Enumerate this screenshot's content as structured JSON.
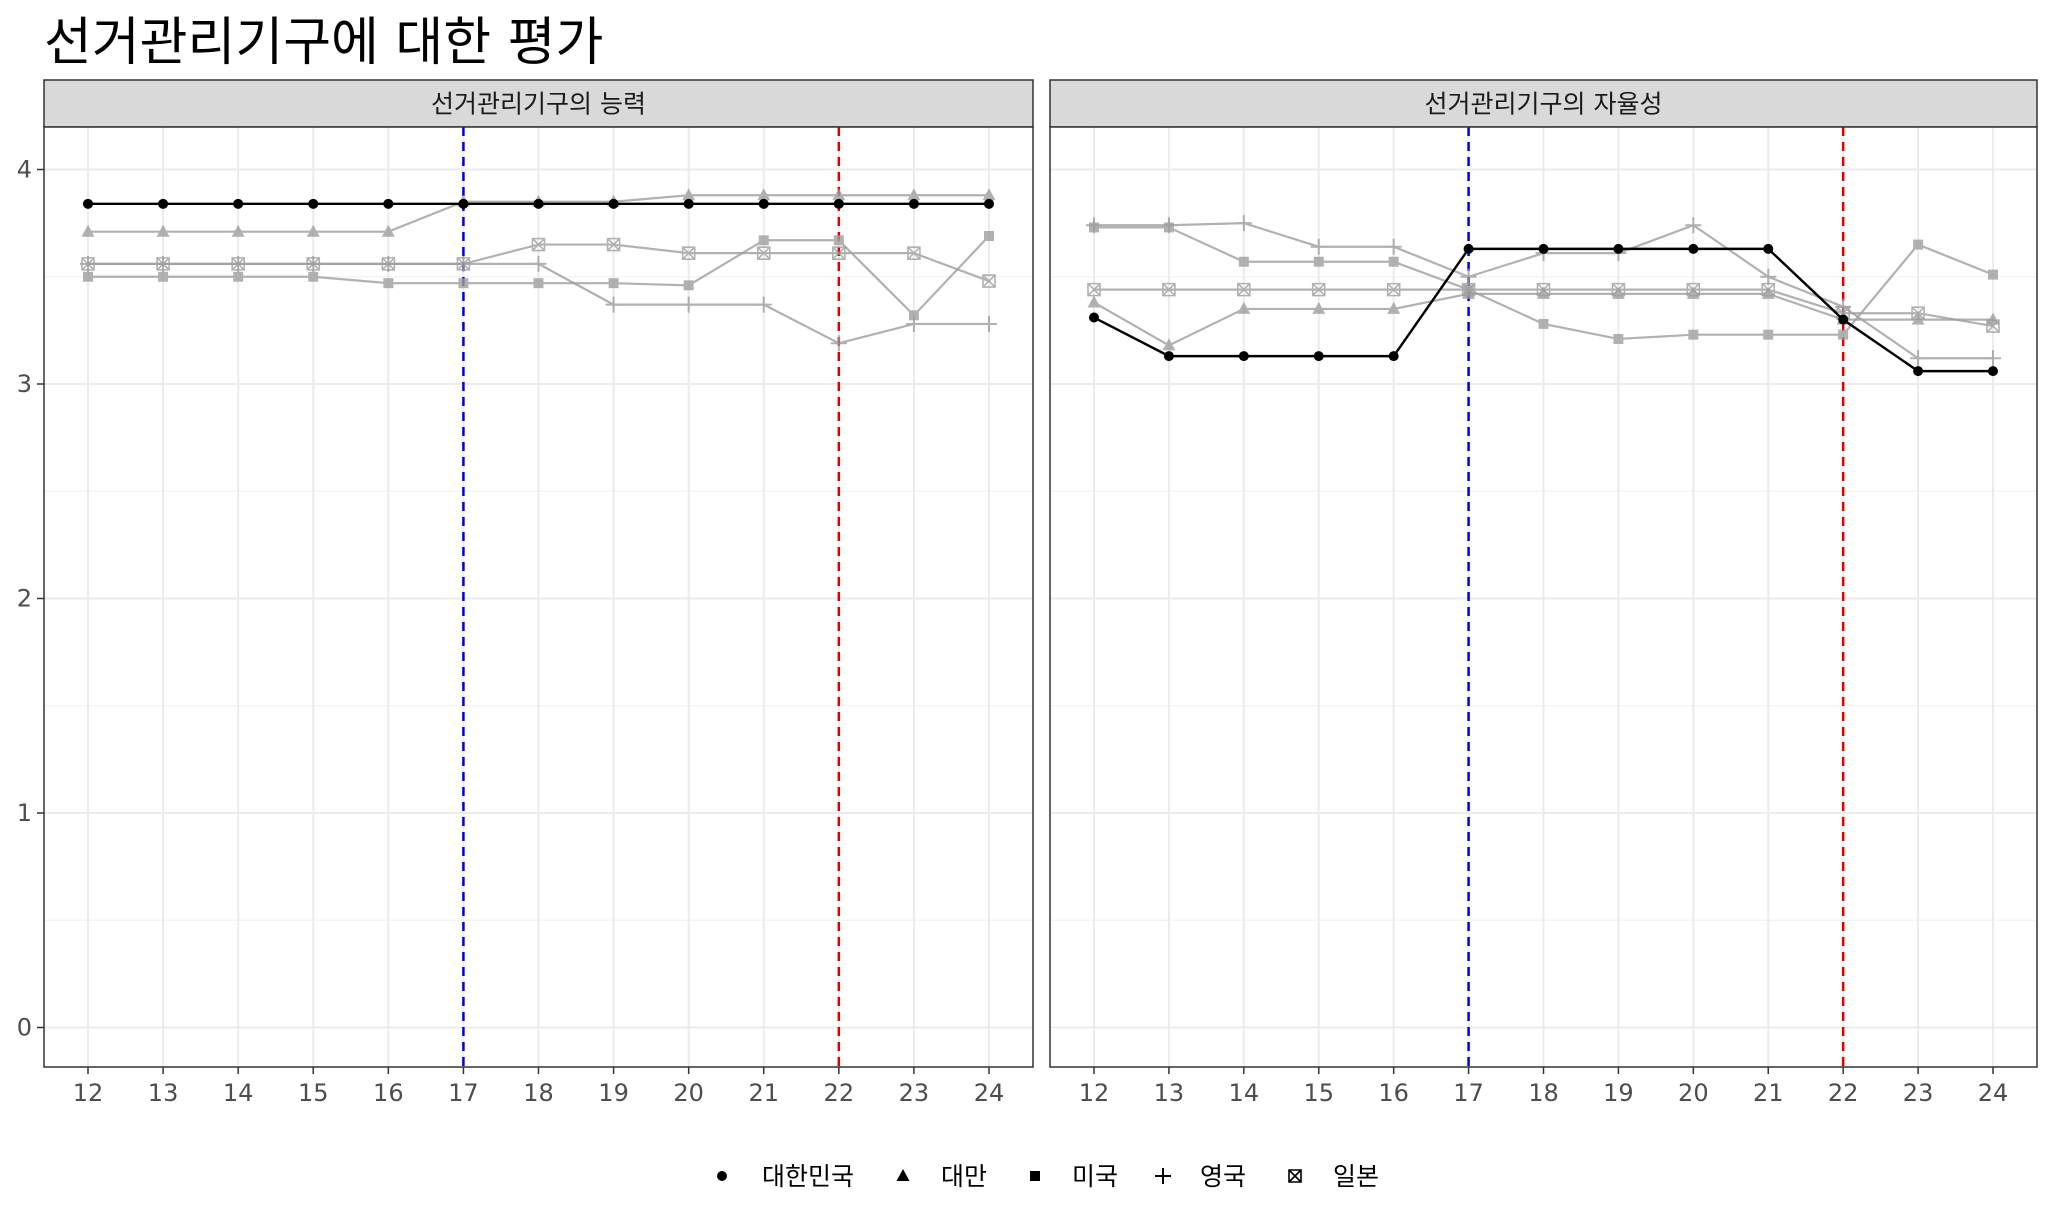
{
  "title": "선거관리기구에 대한 평가",
  "chart_data": {
    "type": "line",
    "x": [
      12,
      13,
      14,
      15,
      16,
      17,
      18,
      19,
      20,
      21,
      22,
      23,
      24
    ],
    "ylim": [
      0,
      4
    ],
    "y_ticks": [
      0,
      1,
      2,
      3,
      4
    ],
    "grid": true,
    "legend_position": "bottom",
    "reference_lines": [
      {
        "x": 17,
        "color": "#0000dd",
        "style": "dashed"
      },
      {
        "x": 22,
        "color": "#dd0000",
        "style": "dashed"
      }
    ],
    "panels": [
      {
        "strip_label": "선거관리기구의 능력",
        "series": [
          {
            "name": "대한민국",
            "marker": "circle",
            "highlight": true,
            "values": [
              3.84,
              3.84,
              3.84,
              3.84,
              3.84,
              3.84,
              3.84,
              3.84,
              3.84,
              3.84,
              3.84,
              3.84,
              3.84
            ]
          },
          {
            "name": "대만",
            "marker": "triangle",
            "highlight": false,
            "values": [
              3.71,
              3.71,
              3.71,
              3.71,
              3.71,
              3.85,
              3.85,
              3.85,
              3.88,
              3.88,
              3.88,
              3.88,
              3.88
            ]
          },
          {
            "name": "미국",
            "marker": "square",
            "highlight": false,
            "values": [
              3.5,
              3.5,
              3.5,
              3.5,
              3.47,
              3.47,
              3.47,
              3.47,
              3.46,
              3.67,
              3.67,
              3.32,
              3.69
            ]
          },
          {
            "name": "영국",
            "marker": "plus",
            "highlight": false,
            "values": [
              3.56,
              3.56,
              3.56,
              3.56,
              3.56,
              3.56,
              3.56,
              3.37,
              3.37,
              3.37,
              3.19,
              3.28,
              3.28
            ]
          },
          {
            "name": "일본",
            "marker": "boxcross",
            "highlight": false,
            "values": [
              3.56,
              3.56,
              3.56,
              3.56,
              3.56,
              3.56,
              3.65,
              3.65,
              3.61,
              3.61,
              3.61,
              3.61,
              3.48
            ]
          }
        ]
      },
      {
        "strip_label": "선거관리기구의 자율성",
        "series": [
          {
            "name": "대한민국",
            "marker": "circle",
            "highlight": true,
            "values": [
              3.31,
              3.13,
              3.13,
              3.13,
              3.13,
              3.63,
              3.63,
              3.63,
              3.63,
              3.63,
              3.3,
              3.06,
              3.06
            ]
          },
          {
            "name": "대만",
            "marker": "triangle",
            "highlight": false,
            "values": [
              3.38,
              3.18,
              3.35,
              3.35,
              3.35,
              3.42,
              3.42,
              3.42,
              3.42,
              3.42,
              3.3,
              3.3,
              3.3
            ]
          },
          {
            "name": "미국",
            "marker": "square",
            "highlight": false,
            "values": [
              3.73,
              3.73,
              3.57,
              3.57,
              3.57,
              3.44,
              3.28,
              3.21,
              3.23,
              3.23,
              3.23,
              3.65,
              3.51
            ]
          },
          {
            "name": "영국",
            "marker": "plus",
            "highlight": false,
            "values": [
              3.74,
              3.74,
              3.75,
              3.64,
              3.64,
              3.5,
              3.61,
              3.61,
              3.74,
              3.5,
              3.36,
              3.12,
              3.12
            ]
          },
          {
            "name": "일본",
            "marker": "boxcross",
            "highlight": false,
            "values": [
              3.44,
              3.44,
              3.44,
              3.44,
              3.44,
              3.44,
              3.44,
              3.44,
              3.44,
              3.44,
              3.33,
              3.33,
              3.27
            ]
          }
        ]
      }
    ],
    "legend": [
      "대한민국",
      "대만",
      "미국",
      "영국",
      "일본"
    ]
  }
}
